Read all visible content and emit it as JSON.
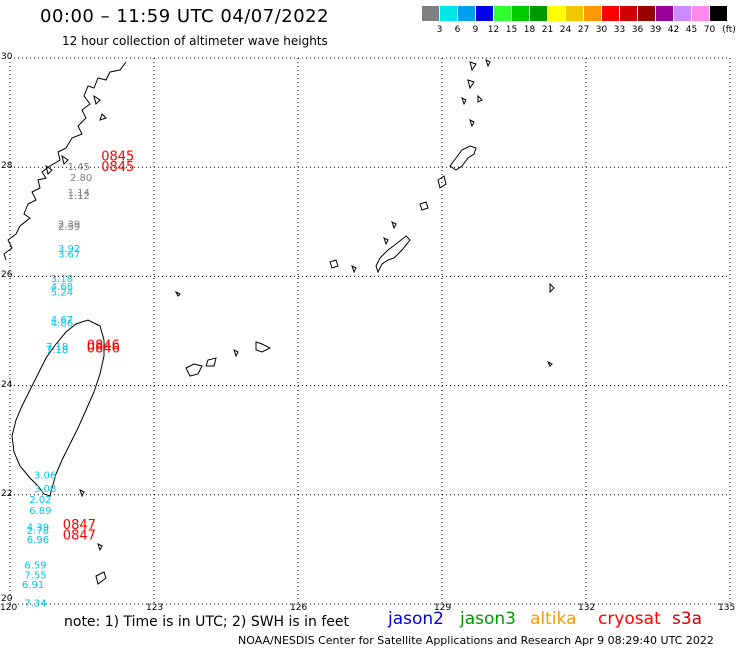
{
  "header": {
    "title": "00:00 – 11:59 UTC 04/07/2022",
    "subtitle": "12 hour collection of altimeter wave heights"
  },
  "legend": {
    "unit": "(ft)",
    "scale": [
      {
        "label": "3",
        "color": "#808080"
      },
      {
        "label": "6",
        "color": "#00e6e6"
      },
      {
        "label": "9",
        "color": "#00a0f0"
      },
      {
        "label": "12",
        "color": "#0000e6"
      },
      {
        "label": "15",
        "color": "#30ff30"
      },
      {
        "label": "18",
        "color": "#00cc00"
      },
      {
        "label": "21",
        "color": "#009900"
      },
      {
        "label": "24",
        "color": "#ffff00"
      },
      {
        "label": "27",
        "color": "#f0c800"
      },
      {
        "label": "30",
        "color": "#ff9900"
      },
      {
        "label": "33",
        "color": "#ff0000"
      },
      {
        "label": "36",
        "color": "#cc0000"
      },
      {
        "label": "39",
        "color": "#990000"
      },
      {
        "label": "42",
        "color": "#990099"
      },
      {
        "label": "45",
        "color": "#cc88ff"
      },
      {
        "label": "70",
        "color": "#ff88e8"
      },
      {
        "label": "",
        "color": "#000000"
      }
    ]
  },
  "axes": {
    "lon_ticks": [
      "120",
      "123",
      "126",
      "129",
      "132",
      "135"
    ],
    "lat_ticks": [
      "30",
      "28",
      "26",
      "24",
      "22",
      "20"
    ],
    "lon_range": [
      120,
      135
    ],
    "lat_range": [
      20,
      30
    ]
  },
  "observations": [
    {
      "text": "1.45",
      "lon": 121.2,
      "lat": 27.95,
      "color": "#808080"
    },
    {
      "text": "2.80",
      "lon": 121.25,
      "lat": 27.75,
      "color": "#808080"
    },
    {
      "text": "1.14",
      "lon": 121.2,
      "lat": 27.47,
      "color": "#808080"
    },
    {
      "text": "1.12",
      "lon": 121.2,
      "lat": 27.42,
      "color": "#808080"
    },
    {
      "text": "2.39",
      "lon": 121.0,
      "lat": 26.9,
      "color": "#808080"
    },
    {
      "text": "2.59",
      "lon": 121.0,
      "lat": 26.85,
      "color": "#808080"
    },
    {
      "text": "3.92",
      "lon": 121.0,
      "lat": 26.45,
      "color": "#00c8e6"
    },
    {
      "text": "3.67",
      "lon": 121.0,
      "lat": 26.35,
      "color": "#00c8e6"
    },
    {
      "text": "3.18",
      "lon": 120.85,
      "lat": 25.9,
      "color": "#00c8e6"
    },
    {
      "text": "4.68",
      "lon": 120.85,
      "lat": 25.75,
      "color": "#00c8e6"
    },
    {
      "text": "5.24",
      "lon": 120.85,
      "lat": 25.65,
      "color": "#00c8e6"
    },
    {
      "text": "4.67",
      "lon": 120.85,
      "lat": 25.15,
      "color": "#00c8e6"
    },
    {
      "text": "4.86",
      "lon": 120.85,
      "lat": 25.08,
      "color": "#00c8e6"
    },
    {
      "text": "7.18",
      "lon": 120.75,
      "lat": 24.65,
      "color": "#00c8e6"
    },
    {
      "text": "7.18",
      "lon": 120.75,
      "lat": 24.6,
      "color": "#00c8e6"
    },
    {
      "text": "3.06",
      "lon": 120.5,
      "lat": 22.3,
      "color": "#00c8e6"
    },
    {
      "text": "3.08",
      "lon": 120.5,
      "lat": 22.05,
      "color": "#00c8e6"
    },
    {
      "text": "2.02",
      "lon": 120.4,
      "lat": 21.85,
      "color": "#00c8e6"
    },
    {
      "text": "6.89",
      "lon": 120.4,
      "lat": 21.65,
      "color": "#00c8e6"
    },
    {
      "text": "4.39",
      "lon": 120.35,
      "lat": 21.35,
      "color": "#00c8e6"
    },
    {
      "text": "2.78",
      "lon": 120.35,
      "lat": 21.28,
      "color": "#00c8e6"
    },
    {
      "text": "6.96",
      "lon": 120.35,
      "lat": 21.12,
      "color": "#00c8e6"
    },
    {
      "text": "6.59",
      "lon": 120.3,
      "lat": 20.65,
      "color": "#00c8e6"
    },
    {
      "text": "7.55",
      "lon": 120.3,
      "lat": 20.47,
      "color": "#00c8e6"
    },
    {
      "text": "6.91",
      "lon": 120.25,
      "lat": 20.29,
      "color": "#00c8e6"
    },
    {
      "text": "7.34",
      "lon": 120.3,
      "lat": 19.95,
      "color": "#00c8e6"
    },
    {
      "text": "0845",
      "lon": 121.9,
      "lat": 28.12,
      "color": "#ff0000"
    },
    {
      "text": "0845",
      "lon": 121.9,
      "lat": 27.93,
      "color": "#ff0000"
    },
    {
      "text": "0846",
      "lon": 121.6,
      "lat": 24.66,
      "color": "#ff0000"
    },
    {
      "text": "0846",
      "lon": 121.6,
      "lat": 24.61,
      "color": "#ff0000"
    },
    {
      "text": "0847",
      "lon": 121.1,
      "lat": 21.37,
      "color": "#ff0000"
    },
    {
      "text": "0847",
      "lon": 121.1,
      "lat": 21.18,
      "color": "#ff0000"
    }
  ],
  "footer": {
    "note": "note: 1) Time is in UTC; 2) SWH is in feet",
    "satellites": [
      {
        "name": "jason2",
        "color": "#0000dd"
      },
      {
        "name": "jason3",
        "color": "#009900"
      },
      {
        "name": "altika",
        "color": "#ff9900"
      },
      {
        "name": "cryosat",
        "color": "#ff0000"
      },
      {
        "name": "s3a",
        "color": "#cc0000"
      }
    ],
    "credit": "NOAA/NESDIS Center for Satellite Applications and Research   Apr  9 08:29:40 UTC 2022"
  }
}
